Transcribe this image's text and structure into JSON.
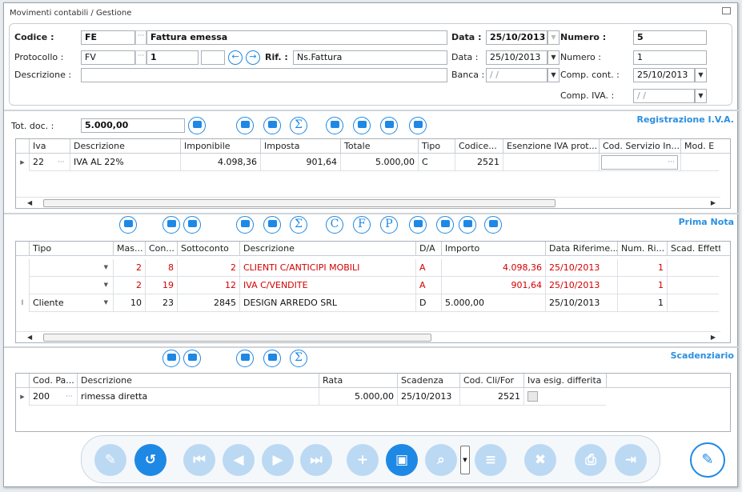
{
  "window": {
    "title": "Movimenti contabili / Gestione"
  },
  "header": {
    "codice_label": "Codice :",
    "codice": "FE",
    "codice_desc": "Fattura emessa",
    "data_label": "Data :",
    "data": "25/10/2013",
    "numero_label": "Numero :",
    "numero": "5",
    "protocollo_label": "Protocollo :",
    "protocollo": "FV",
    "protocollo_num": "1",
    "protocollo_ext": "",
    "rif_label": "Rif. :",
    "rif": "Ns.Fattura",
    "data2_label": "Data :",
    "data2": "25/10/2013",
    "numero2_label": "Numero :",
    "numero2": "1",
    "descrizione_label": "Descrizione :",
    "descrizione": "",
    "banca_label": "Banca :",
    "banca": "/ /",
    "comp_cont_label": "Comp. cont. :",
    "comp_cont": "25/10/2013",
    "comp_iva_label": "Comp. IVA. :",
    "comp_iva": "/ /"
  },
  "iva": {
    "section_title": "Registrazione I.V.A.",
    "tot_label": "Tot. doc. :",
    "tot": "5.000,00",
    "columns": [
      "Iva",
      "Descrizione",
      "Imponibile",
      "Imposta",
      "Totale",
      "Tipo",
      "Codice...",
      "Esenzione IVA prot...",
      "Cod. Servizio In...",
      "Mod. E"
    ],
    "rows": [
      {
        "iva": "22",
        "descrizione": "IVA AL 22%",
        "imponibile": "4.098,36",
        "imposta": "901,64",
        "totale": "5.000,00",
        "tipo": "C",
        "codice": "2521",
        "esenzione": "",
        "cod_servizio": ""
      }
    ]
  },
  "prima_nota": {
    "section_title": "Prima Nota",
    "columns": [
      "Tipo",
      "Mas...",
      "Con...",
      "Sottoconto",
      "Descrizione",
      "D/A",
      "Importo",
      "Data Riferime...",
      "Num. Ri...",
      "Scad. Effett"
    ],
    "rows": [
      {
        "tipo": "",
        "mas": "2",
        "con": "8",
        "sotto": "2",
        "descrizione": "CLIENTI C/ANTICIPI MOBILI",
        "da": "A",
        "importo": "4.098,36",
        "data": "25/10/2013",
        "num": "1"
      },
      {
        "tipo": "",
        "mas": "2",
        "con": "19",
        "sotto": "12",
        "descrizione": "IVA C/VENDITE",
        "da": "A",
        "importo": "901,64",
        "data": "25/10/2013",
        "num": "1"
      },
      {
        "tipo": "Cliente",
        "mas": "10",
        "con": "23",
        "sotto": "2845",
        "descrizione": "DESIGN ARREDO SRL",
        "da": "D",
        "importo": "5.000,00",
        "data": "25/10/2013",
        "num": "1"
      }
    ],
    "letters": [
      "C",
      "F",
      "P"
    ]
  },
  "scadenziario": {
    "section_title": "Scadenziario",
    "columns": [
      "Cod. Pa...",
      "Descrizione",
      "Rata",
      "Scadenza",
      "Cod. Cli/For",
      "Iva esig. differita"
    ],
    "rows": [
      {
        "cod": "200",
        "descrizione": "rimessa diretta",
        "rata": "5.000,00",
        "scadenza": "25/10/2013",
        "cod_cli": "2521"
      }
    ]
  },
  "colors": {
    "accent": "#1e88e5",
    "red": "#d40000",
    "disabled": "#bcd9f3"
  }
}
